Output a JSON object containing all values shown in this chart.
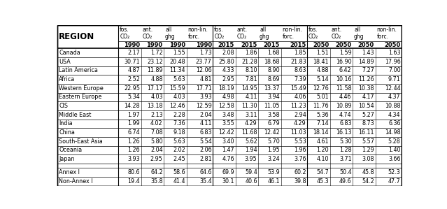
{
  "header_row1": [
    "REGION",
    "fos.\nCO₂",
    "ant.\nCO₂",
    "all\nghg",
    "non-lin.\nforc.",
    "fos.\nCO₂",
    "ant.\nCO₂",
    "all\nghg",
    "non-lin.\nforc.",
    "fos.\nCO₂",
    "ant.\nCO₂",
    "all\nghg",
    "non-lin.\nforc."
  ],
  "header_row2": [
    "",
    "1990",
    "1990",
    "1990",
    "1990",
    "2015",
    "2015",
    "2015",
    "2015",
    "2050",
    "2050",
    "2050",
    "2050"
  ],
  "regions": [
    "Canada",
    "USA",
    "Latin America",
    "Africa",
    "Western Europe",
    "Eastern Europe",
    "CIS",
    "Middle East",
    "India",
    "China",
    "South-East Asia",
    "Oceania",
    "Japan"
  ],
  "data_str_vals": [
    [
      "2.17",
      "1.72",
      "1.55",
      "1.73",
      "2.08",
      "1.86",
      "1.68",
      "1.85",
      "1.51",
      "1.59",
      "1.43",
      "1.63"
    ],
    [
      "30.71",
      "23.12",
      "20.48",
      "23.77",
      "25.80",
      "21.28",
      "18.68",
      "21.83",
      "18.41",
      "16.90",
      "14.89",
      "17.96"
    ],
    [
      "4.87",
      "11.89",
      "11.34",
      "12.06",
      "4.33",
      "8.10",
      "8.90",
      "8.63",
      "4.88",
      "6.42",
      "7.27",
      "7.00"
    ],
    [
      "2.52",
      "4.88",
      "5.63",
      "4.81",
      "2.95",
      "7.81",
      "8.69",
      "7.39",
      "5.14",
      "10.16",
      "11.26",
      "9.71"
    ],
    [
      "22.95",
      "17.17",
      "15.59",
      "17.71",
      "18.19",
      "14.95",
      "13.37",
      "15.49",
      "12.76",
      "11.58",
      "10.38",
      "12.44"
    ],
    [
      "5.34",
      "4.03",
      "4.03",
      "3.93",
      "4.98",
      "4.11",
      "3.94",
      "4.06",
      "5.01",
      "4.46",
      "4.17",
      "4.37"
    ],
    [
      "14.28",
      "13.18",
      "12.46",
      "12.59",
      "12.58",
      "11.30",
      "11.05",
      "11.23",
      "11.76",
      "10.89",
      "10.54",
      "10.88"
    ],
    [
      "1.97",
      "2.13",
      "2.28",
      "2.04",
      "3.48",
      "3.11",
      "3.58",
      "2.94",
      "5.36",
      "4.74",
      "5.27",
      "4.34"
    ],
    [
      "1.99",
      "4.02",
      "7.36",
      "4.11",
      "3.55",
      "4.29",
      "6.79",
      "4.29",
      "7.14",
      "6.83",
      "8.73",
      "6.36"
    ],
    [
      "6.74",
      "7.08",
      "9.18",
      "6.83",
      "12.42",
      "11.68",
      "12.42",
      "11.03",
      "18.14",
      "16.13",
      "16.11",
      "14.98"
    ],
    [
      "1.26",
      "5.80",
      "5.63",
      "5.54",
      "3.40",
      "5.62",
      "5.70",
      "5.53",
      "4.61",
      "5.30",
      "5.57",
      "5.28"
    ],
    [
      "1.26",
      "2.04",
      "2.02",
      "2.06",
      "1.47",
      "1.94",
      "1.95",
      "1.96",
      "1.20",
      "1.28",
      "1.29",
      "1.40"
    ],
    [
      "3.93",
      "2.95",
      "2.45",
      "2.81",
      "4.76",
      "3.95",
      "3.24",
      "3.76",
      "4.10",
      "3.71",
      "3.08",
      "3.66"
    ]
  ],
  "annex_data_str": [
    [
      "80.6",
      "64.2",
      "58.6",
      "64.6",
      "69.9",
      "59.4",
      "53.9",
      "60.2",
      "54.7",
      "50.4",
      "45.8",
      "52.3"
    ],
    [
      "19.4",
      "35.8",
      "41.4",
      "35.4",
      "30.1",
      "40.6",
      "46.1",
      "39.8",
      "45.3",
      "49.6",
      "54.2",
      "47.7"
    ]
  ],
  "annex_labels": [
    "Annex I",
    "Non-Annex I"
  ],
  "col_widths_rel": [
    1.55,
    0.58,
    0.58,
    0.58,
    0.67,
    0.58,
    0.58,
    0.58,
    0.67,
    0.58,
    0.58,
    0.58,
    0.67
  ]
}
